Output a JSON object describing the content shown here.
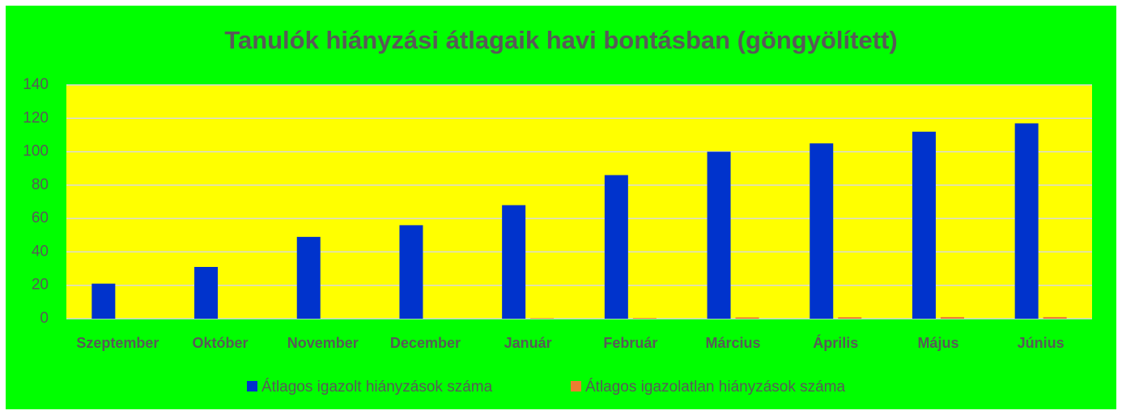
{
  "chart_data": {
    "type": "bar",
    "title": "Tanulók hiányzási átlagaik havi bontásban (göngyölített)",
    "categories": [
      "Szeptember",
      "Október",
      "November",
      "December",
      "Január",
      "Február",
      "Március",
      "Április",
      "Május",
      "Június"
    ],
    "series": [
      {
        "name": "Átlagos igazolt hiányzások száma",
        "color": "#0033cc",
        "values": [
          21,
          31,
          49,
          56,
          68,
          86,
          100,
          105,
          112,
          117
        ]
      },
      {
        "name": "Átlagos igazolatlan hiányzások száma",
        "color": "#ed7d31",
        "values": [
          0,
          0,
          0,
          0,
          0.3,
          0.4,
          0.8,
          0.9,
          1,
          1
        ]
      }
    ],
    "ylim": [
      0,
      140
    ],
    "yticks": [
      0,
      20,
      40,
      60,
      80,
      100,
      120,
      140
    ],
    "grid": true,
    "legend": "bottom"
  }
}
